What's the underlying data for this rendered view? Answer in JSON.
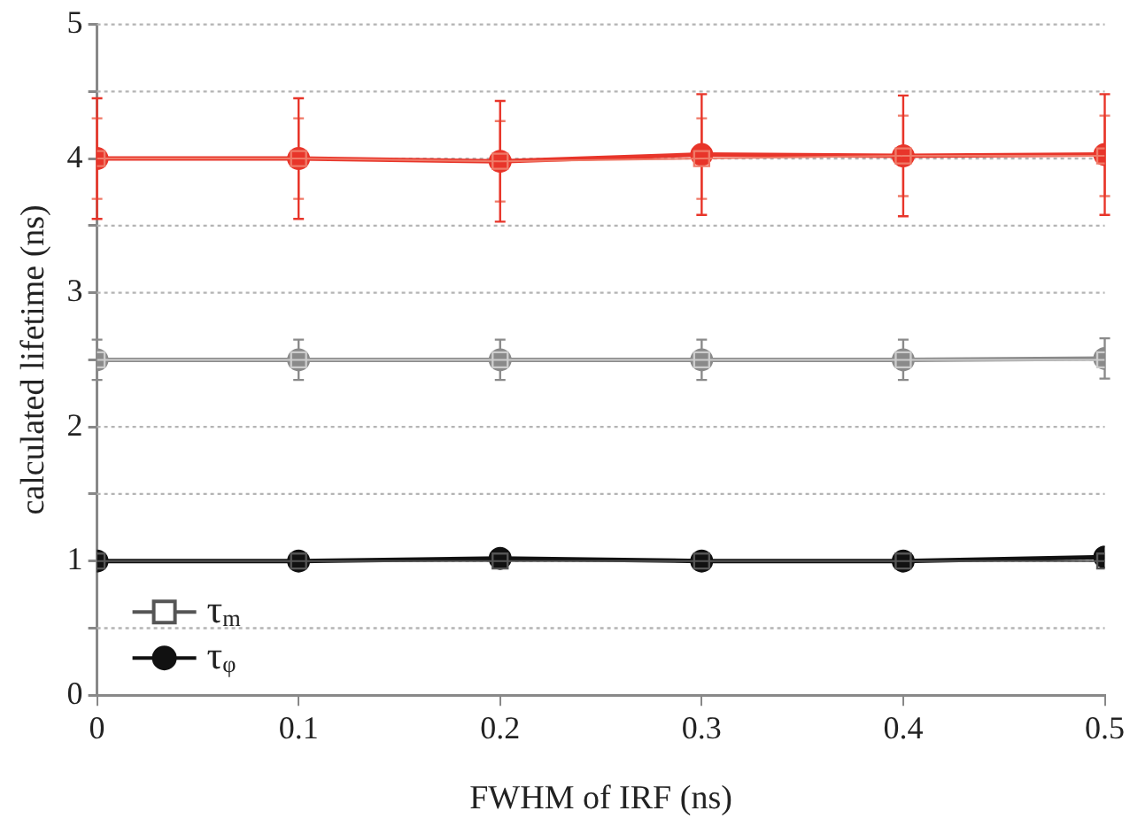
{
  "chart_data": {
    "type": "line",
    "xlabel": "FWHM of IRF (ns)",
    "ylabel": "calculated lifetime (ns)",
    "x": [
      0,
      0.1,
      0.2,
      0.3,
      0.4,
      0.5
    ],
    "xlim": [
      0,
      0.5
    ],
    "xticks": [
      0,
      0.1,
      0.2,
      0.3,
      0.4,
      0.5
    ],
    "ylim": [
      0,
      5
    ],
    "yticks": [
      0,
      {
        "value": 0.5,
        "label": null
      },
      1,
      {
        "value": 1.5,
        "label": null
      },
      2,
      {
        "value": 2.5,
        "label": null
      },
      3,
      {
        "value": 3.5,
        "label": null
      },
      4,
      {
        "value": 4.5,
        "label": null
      },
      5
    ],
    "grid": "y",
    "legend": "bottom left",
    "line_style": "solid",
    "series": [
      {
        "color": "#f07a68",
        "marker": "square",
        "values": [
          4.0,
          4.0,
          3.98,
          4.0,
          4.02,
          4.02
        ],
        "errors": [
          0.3,
          0.3,
          0.3,
          0.3,
          0.3,
          0.3
        ]
      },
      {
        "color": "#e8352a",
        "marker": "circle",
        "values": [
          4.0,
          4.0,
          3.98,
          4.03,
          4.02,
          4.03
        ],
        "errors": [
          0.45,
          0.45,
          0.45,
          0.45,
          0.45,
          0.45
        ]
      },
      {
        "color": "#cccccc",
        "marker": "square",
        "values": [
          2.5,
          2.5,
          2.5,
          2.5,
          2.5,
          2.5
        ]
      },
      {
        "color": "#8a8a8a",
        "marker": "circle",
        "values": [
          2.5,
          2.5,
          2.5,
          2.5,
          2.5,
          2.51
        ],
        "errors": [
          0.15,
          0.15,
          0.15,
          0.15,
          0.15,
          0.15
        ]
      },
      {
        "name": "τ$_{m}$",
        "color": "#555555",
        "marker": "square",
        "values": [
          1.0,
          1.0,
          1.0,
          1.0,
          1.0,
          1.0
        ]
      },
      {
        "name": "τ$_{φ}$",
        "color": "#111111",
        "marker": "circle",
        "values": [
          1.0,
          1.0,
          1.02,
          1.0,
          1.0,
          1.03
        ]
      }
    ]
  }
}
